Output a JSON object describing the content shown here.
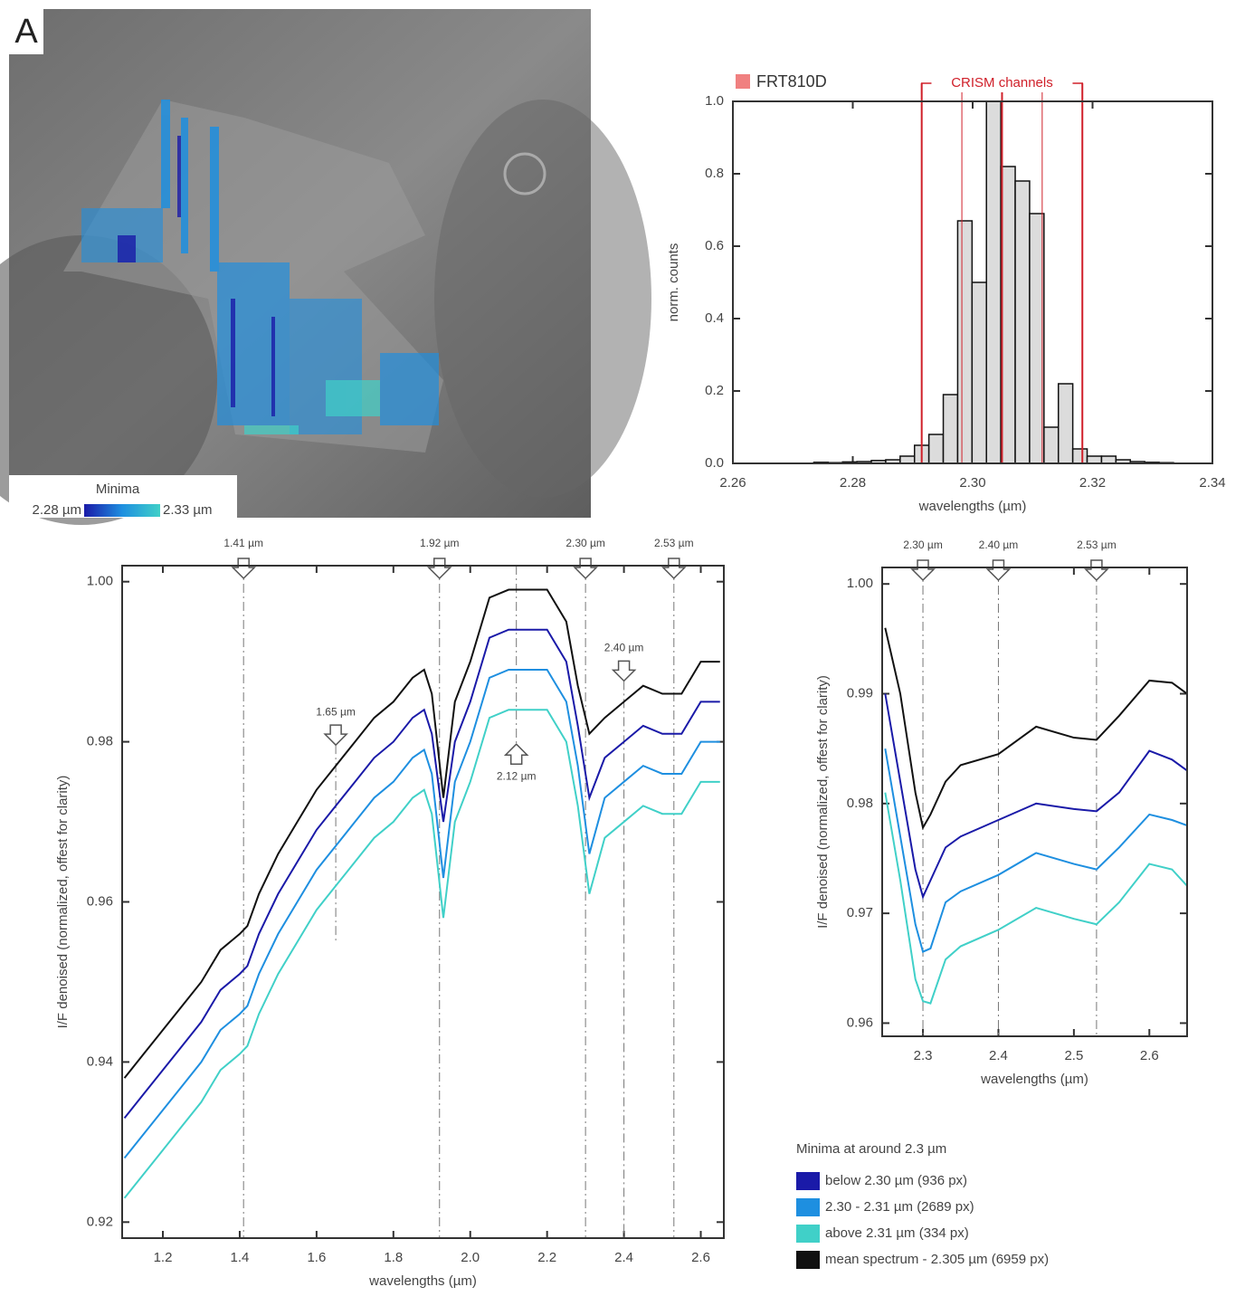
{
  "panel_label": "A",
  "map_legend": {
    "title": "Minima",
    "min_label": "2.28 µm",
    "max_label": "2.33 µm"
  },
  "chart_data": [
    {
      "type": "histogram",
      "ylabel": "norm. counts",
      "xlabel": "wavelengths (µm)",
      "legend_label": "FRT810D",
      "legend_color": "#f08080",
      "annotation": "CRISM channels",
      "channel_color": "#d0202a",
      "channel_lines": [
        2.2915,
        2.2982,
        2.3049,
        2.3116,
        2.3183
      ],
      "bins": [
        2.2735,
        2.2759,
        2.2783,
        2.2807,
        2.2831,
        2.2855,
        2.2879,
        2.2903,
        2.2927,
        2.2951,
        2.2975,
        2.2999,
        2.3023,
        2.3047,
        2.3071,
        2.3095,
        2.3119,
        2.3143,
        2.3167,
        2.3191,
        2.3215,
        2.3239,
        2.3263,
        2.3287,
        2.3311,
        2.3335
      ],
      "values": [
        0.003,
        0.002,
        0.004,
        0.005,
        0.008,
        0.01,
        0.02,
        0.05,
        0.08,
        0.19,
        0.67,
        0.5,
        1.0,
        0.82,
        0.78,
        0.69,
        0.1,
        0.22,
        0.04,
        0.02,
        0.02,
        0.01,
        0.005,
        0.003,
        0.002
      ],
      "color": "#dcdcdc",
      "xlim": [
        2.26,
        2.34
      ],
      "xticks": [
        2.26,
        2.28,
        {
          "value": 2.3,
          "label": "2.30"
        },
        2.32,
        2.34
      ],
      "ylim": [
        0,
        1
      ],
      "yticks": [
        {
          "value": 0,
          "label": "0.0"
        },
        0.2,
        0.4,
        0.6,
        0.8,
        {
          "value": 1,
          "label": "1.0"
        }
      ]
    },
    {
      "type": "line",
      "ylabel": "I/F denoised (normalized, offest for clarity)",
      "xlabel": "wavelengths (µm)",
      "legend_title": "Minima at around 2.3 µm",
      "x": [
        1.1,
        1.15,
        1.2,
        1.25,
        1.3,
        1.35,
        1.4,
        1.42,
        1.45,
        1.5,
        1.55,
        1.6,
        1.65,
        1.7,
        1.75,
        1.8,
        1.85,
        1.88,
        1.9,
        1.93,
        1.96,
        2.0,
        2.05,
        2.1,
        2.15,
        2.2,
        2.25,
        2.28,
        2.31,
        2.35,
        2.4,
        2.45,
        2.5,
        2.55,
        2.6,
        2.65
      ],
      "series": [
        {
          "name": "below 2.30 µm (936 px)",
          "color": "#1a1aa8",
          "values": [
            0.933,
            0.936,
            0.939,
            0.942,
            0.945,
            0.949,
            0.951,
            0.952,
            0.956,
            0.961,
            0.965,
            0.969,
            0.972,
            0.975,
            0.978,
            0.98,
            0.983,
            0.984,
            0.981,
            0.97,
            0.98,
            0.985,
            0.993,
            0.994,
            0.994,
            0.994,
            0.99,
            0.982,
            0.973,
            0.978,
            0.98,
            0.982,
            0.981,
            0.981,
            0.985,
            0.985
          ]
        },
        {
          "name": "2.30 - 2.31 µm (2689 px)",
          "color": "#1e8fe0",
          "values": [
            0.928,
            0.931,
            0.934,
            0.937,
            0.94,
            0.944,
            0.946,
            0.947,
            0.951,
            0.956,
            0.96,
            0.964,
            0.967,
            0.97,
            0.973,
            0.975,
            0.978,
            0.979,
            0.976,
            0.963,
            0.975,
            0.98,
            0.988,
            0.989,
            0.989,
            0.989,
            0.985,
            0.977,
            0.966,
            0.973,
            0.975,
            0.977,
            0.976,
            0.976,
            0.98,
            0.98
          ]
        },
        {
          "name": "above 2.31 µm (334 px)",
          "color": "#40d0c8",
          "values": [
            0.923,
            0.926,
            0.929,
            0.932,
            0.935,
            0.939,
            0.941,
            0.942,
            0.946,
            0.951,
            0.955,
            0.959,
            0.962,
            0.965,
            0.968,
            0.97,
            0.973,
            0.974,
            0.971,
            0.958,
            0.97,
            0.975,
            0.983,
            0.984,
            0.984,
            0.984,
            0.98,
            0.972,
            0.961,
            0.968,
            0.97,
            0.972,
            0.971,
            0.971,
            0.975,
            0.975
          ]
        },
        {
          "name": "mean spectrum - 2.305 µm (6959 px)",
          "color": "#111111",
          "values": [
            0.938,
            0.941,
            0.944,
            0.947,
            0.95,
            0.954,
            0.956,
            0.957,
            0.961,
            0.966,
            0.97,
            0.974,
            0.977,
            0.98,
            0.983,
            0.985,
            0.988,
            0.989,
            0.986,
            0.973,
            0.985,
            0.99,
            0.998,
            0.999,
            0.999,
            0.999,
            0.995,
            0.987,
            0.981,
            0.983,
            0.985,
            0.987,
            0.986,
            0.986,
            0.99,
            0.99
          ]
        }
      ],
      "markers": [
        {
          "x": 1.41,
          "label": "1.41 µm",
          "placement": "top"
        },
        {
          "x": 1.92,
          "label": "1.92 µm",
          "placement": "top"
        },
        {
          "x": 2.3,
          "label": "2.30 µm",
          "placement": "top"
        },
        {
          "x": 2.53,
          "label": "2.53 µm",
          "placement": "top"
        },
        {
          "x": 1.65,
          "label": "1.65 µm",
          "placement": "above"
        },
        {
          "x": 2.4,
          "label": "2.40 µm",
          "placement": "above"
        },
        {
          "x": 2.12,
          "label": "2.12 µm",
          "placement": "below"
        }
      ],
      "xlim": [
        1.094,
        2.66
      ],
      "xticks": [
        1.2,
        1.4,
        1.6,
        1.8,
        {
          "value": 2,
          "label": "2.0"
        },
        2.2,
        2.4,
        2.6
      ],
      "ylim": [
        0.918,
        1.002
      ],
      "yticks": [
        0.92,
        0.94,
        0.96,
        0.98,
        {
          "value": 1,
          "label": "1.00"
        }
      ]
    },
    {
      "type": "line",
      "ylabel": "I/F denoised (normalized, offest for clarity)",
      "xlabel": "wavelengths (µm)",
      "x": [
        2.25,
        2.27,
        2.29,
        2.3,
        2.31,
        2.33,
        2.35,
        2.4,
        2.45,
        2.5,
        2.53,
        2.56,
        2.6,
        2.63,
        2.65
      ],
      "series": [
        {
          "color": "#1a1aa8",
          "values": [
            0.99,
            0.982,
            0.974,
            0.9715,
            0.973,
            0.976,
            0.977,
            0.9785,
            0.98,
            0.9795,
            0.9793,
            0.981,
            0.9848,
            0.984,
            0.983
          ]
        },
        {
          "color": "#1e8fe0",
          "values": [
            0.985,
            0.977,
            0.969,
            0.9665,
            0.9668,
            0.971,
            0.972,
            0.9735,
            0.9755,
            0.9745,
            0.974,
            0.976,
            0.979,
            0.9785,
            0.978
          ]
        },
        {
          "color": "#40d0c8",
          "values": [
            0.981,
            0.973,
            0.964,
            0.962,
            0.9618,
            0.9658,
            0.967,
            0.9685,
            0.9705,
            0.9695,
            0.969,
            0.971,
            0.9745,
            0.974,
            0.9725
          ]
        },
        {
          "color": "#111111",
          "values": [
            0.996,
            0.99,
            0.981,
            0.9778,
            0.979,
            0.982,
            0.9835,
            0.9845,
            0.987,
            0.986,
            0.9858,
            0.988,
            0.9912,
            0.991,
            0.99
          ]
        }
      ],
      "markers": [
        {
          "x": 2.3,
          "label": "2.30 µm",
          "placement": "top"
        },
        {
          "x": 2.4,
          "label": "2.40 µm",
          "placement": "top"
        },
        {
          "x": 2.53,
          "label": "2.53 µm",
          "placement": "top"
        }
      ],
      "xlim": [
        2.246,
        2.65
      ],
      "xticks": [
        2.3,
        2.4,
        2.5,
        2.6
      ],
      "ylim": [
        0.9588,
        1.0015
      ],
      "yticks": [
        0.96,
        0.97,
        0.98,
        0.99,
        {
          "value": 1,
          "label": "1.00"
        }
      ]
    }
  ]
}
